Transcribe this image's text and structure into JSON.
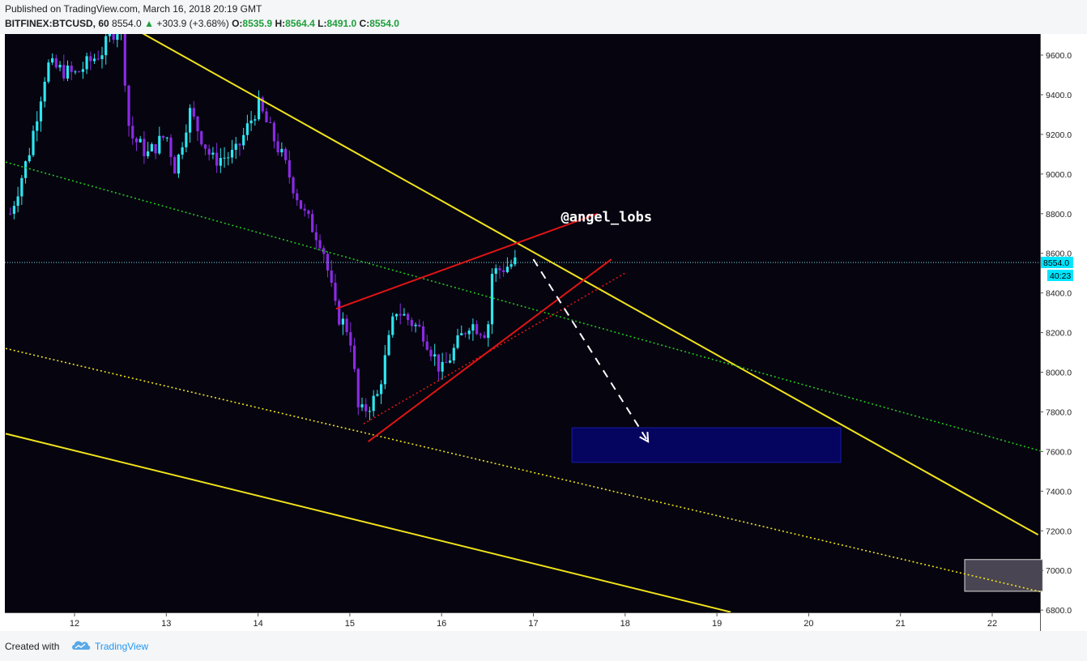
{
  "header": {
    "published": "Published on TradingView.com, March 16, 2018 20:19 GMT",
    "symbol": "BITFINEX:BTCUSD, 60",
    "last": "8554.0",
    "change": "+303.9 (+3.68%)",
    "open_label": "O:",
    "open": "8535.9",
    "high_label": "H:",
    "high": "8564.4",
    "low_label": "L:",
    "low": "8491.0",
    "close_label": "C:",
    "close": "8554.0"
  },
  "footer": {
    "created_with": "Created with",
    "brand": "TradingView",
    "logo_icon": "tradingview-cloud-icon"
  },
  "colors": {
    "background": "#05040f",
    "bull": "#2ee6f0",
    "bear": "#8a2be2",
    "channel": "#f2e41a",
    "pattern": "#e01414",
    "dotted_green": "#23c81e",
    "target_box": "#1a1aa8"
  },
  "chart_data": {
    "type": "candlestick",
    "x_tick_labels": [
      "12",
      "13",
      "14",
      "15",
      "16",
      "17",
      "18",
      "19",
      "20",
      "21",
      "22"
    ],
    "xlim_days": [
      11.25,
      22.55
    ],
    "y_tick_labels": [
      "9600.0",
      "9400.0",
      "9200.0",
      "9000.0",
      "8800.0",
      "8600.0",
      "8400.0",
      "8200.0",
      "8000.0",
      "7800.0",
      "7600.0",
      "7400.0",
      "7200.0",
      "7000.0",
      "6800.0"
    ],
    "ylim": [
      6770,
      9750
    ],
    "last_price": {
      "value": 8554.0,
      "label": "8554.0",
      "countdown": "40:23"
    },
    "annotation": {
      "text": "@angel_lobs",
      "day": 17.3,
      "price": 8760
    },
    "anchors": [
      {
        "day": 11.3,
        "price": 8800
      },
      {
        "day": 11.5,
        "price": 9100
      },
      {
        "day": 11.7,
        "price": 9550
      },
      {
        "day": 12.0,
        "price": 9500
      },
      {
        "day": 12.3,
        "price": 9620
      },
      {
        "day": 12.5,
        "price": 9780
      },
      {
        "day": 12.6,
        "price": 9200
      },
      {
        "day": 12.8,
        "price": 9100
      },
      {
        "day": 13.0,
        "price": 9200
      },
      {
        "day": 13.1,
        "price": 9020
      },
      {
        "day": 13.25,
        "price": 9320
      },
      {
        "day": 13.5,
        "price": 9070
      },
      {
        "day": 13.75,
        "price": 9100
      },
      {
        "day": 14.0,
        "price": 9350
      },
      {
        "day": 14.25,
        "price": 9100
      },
      {
        "day": 14.5,
        "price": 8800
      },
      {
        "day": 14.7,
        "price": 8650
      },
      {
        "day": 14.85,
        "price": 8300
      },
      {
        "day": 15.0,
        "price": 8200
      },
      {
        "day": 15.1,
        "price": 7780
      },
      {
        "day": 15.3,
        "price": 7880
      },
      {
        "day": 15.5,
        "price": 8320
      },
      {
        "day": 15.8,
        "price": 8200
      },
      {
        "day": 16.0,
        "price": 8000
      },
      {
        "day": 16.3,
        "price": 8250
      },
      {
        "day": 16.5,
        "price": 8200
      },
      {
        "day": 16.55,
        "price": 8500
      },
      {
        "day": 16.8,
        "price": 8554
      }
    ],
    "trendlines": [
      {
        "name": "upper-channel",
        "kind": "solid",
        "color": "channel",
        "points": [
          {
            "day": 12.2,
            "price": 9850
          },
          {
            "day": 22.5,
            "price": 7180
          }
        ]
      },
      {
        "name": "lower-channel",
        "kind": "solid",
        "color": "channel",
        "points": [
          {
            "day": 11.25,
            "price": 7690
          },
          {
            "day": 19.15,
            "price": 6790
          }
        ]
      },
      {
        "name": "dotted-yellow",
        "kind": "dotted",
        "color": "channel",
        "points": [
          {
            "day": 11.25,
            "price": 8120
          },
          {
            "day": 22.55,
            "price": 6890
          }
        ]
      },
      {
        "name": "dotted-green",
        "kind": "dotted",
        "color": "dotted_green",
        "points": [
          {
            "day": 11.25,
            "price": 9060
          },
          {
            "day": 22.55,
            "price": 7600
          }
        ]
      },
      {
        "name": "wedge-upper",
        "kind": "solid",
        "color": "pattern",
        "points": [
          {
            "day": 14.85,
            "price": 8320
          },
          {
            "day": 17.7,
            "price": 8800
          }
        ]
      },
      {
        "name": "wedge-lower",
        "kind": "solid",
        "color": "pattern",
        "points": [
          {
            "day": 15.2,
            "price": 7650
          },
          {
            "day": 17.85,
            "price": 8570
          }
        ]
      },
      {
        "name": "wedge-dotted",
        "kind": "dotted",
        "color": "pattern",
        "points": [
          {
            "day": 15.15,
            "price": 7740
          },
          {
            "day": 18.0,
            "price": 8500
          }
        ]
      }
    ],
    "projection_arrow": {
      "from": {
        "day": 17.0,
        "price": 8570
      },
      "to": {
        "day": 18.25,
        "price": 7650
      }
    },
    "target_box": {
      "day_from": 17.42,
      "day_to": 20.35,
      "price_low": 7545,
      "price_high": 7720
    },
    "corner_box": {
      "day_from": 21.7,
      "day_to": 22.55,
      "price_low": 6895,
      "price_high": 7055
    }
  }
}
